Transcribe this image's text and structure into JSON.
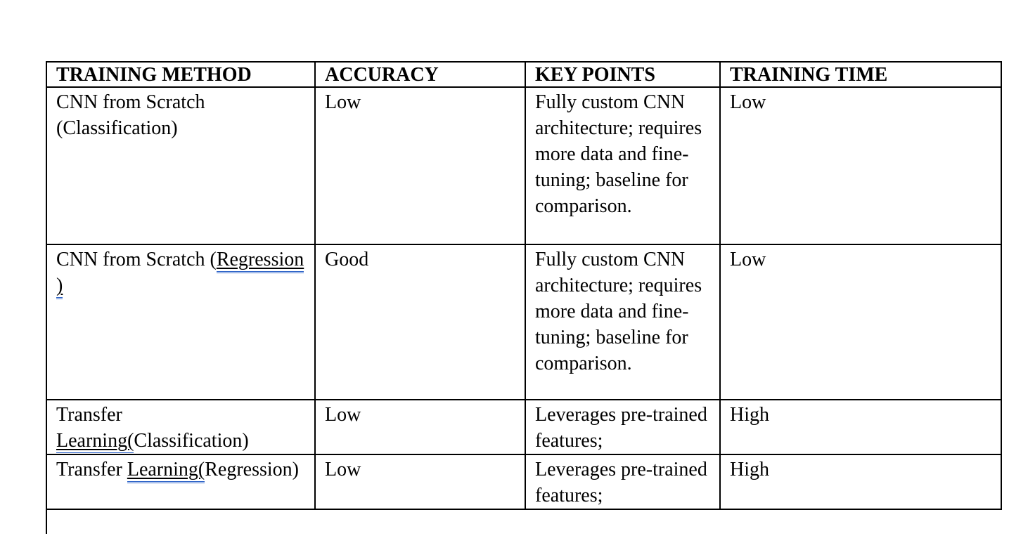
{
  "document": {
    "text_color": "#000000",
    "border_color": "#000000",
    "grammar_mark_color": "#2e64c8",
    "table": {
      "headers": [
        "TRAINING METHOD",
        "ACCURACY",
        "KEY POINTS",
        "TRAINING TIME"
      ],
      "rows": [
        {
          "method_pre": "CNN from Scratch (Classification)",
          "method_marked": "",
          "method_post": "",
          "accuracy": "Low",
          "key_points": "Fully custom CNN architecture; requires more data and fine-tuning; baseline for comparison.",
          "training_time": "Low"
        },
        {
          "method_pre": "CNN from Scratch (",
          "method_marked": "Regression )",
          "method_post": "",
          "accuracy": "Good",
          "key_points": "Fully custom CNN architecture; requires more data and fine-tuning; baseline for comparison.",
          "training_time": "Low"
        },
        {
          "method_pre": "Transfer ",
          "method_marked": "Learning(",
          "method_post": "Classification)",
          "accuracy": "Low",
          "key_points": "Leverages pre-trained features;",
          "training_time": "High"
        },
        {
          "method_pre": "Transfer ",
          "method_marked": "Learning(",
          "method_post": "Regression)",
          "accuracy": "Low",
          "key_points": "Leverages pre-trained features;",
          "training_time": "High"
        }
      ]
    }
  }
}
